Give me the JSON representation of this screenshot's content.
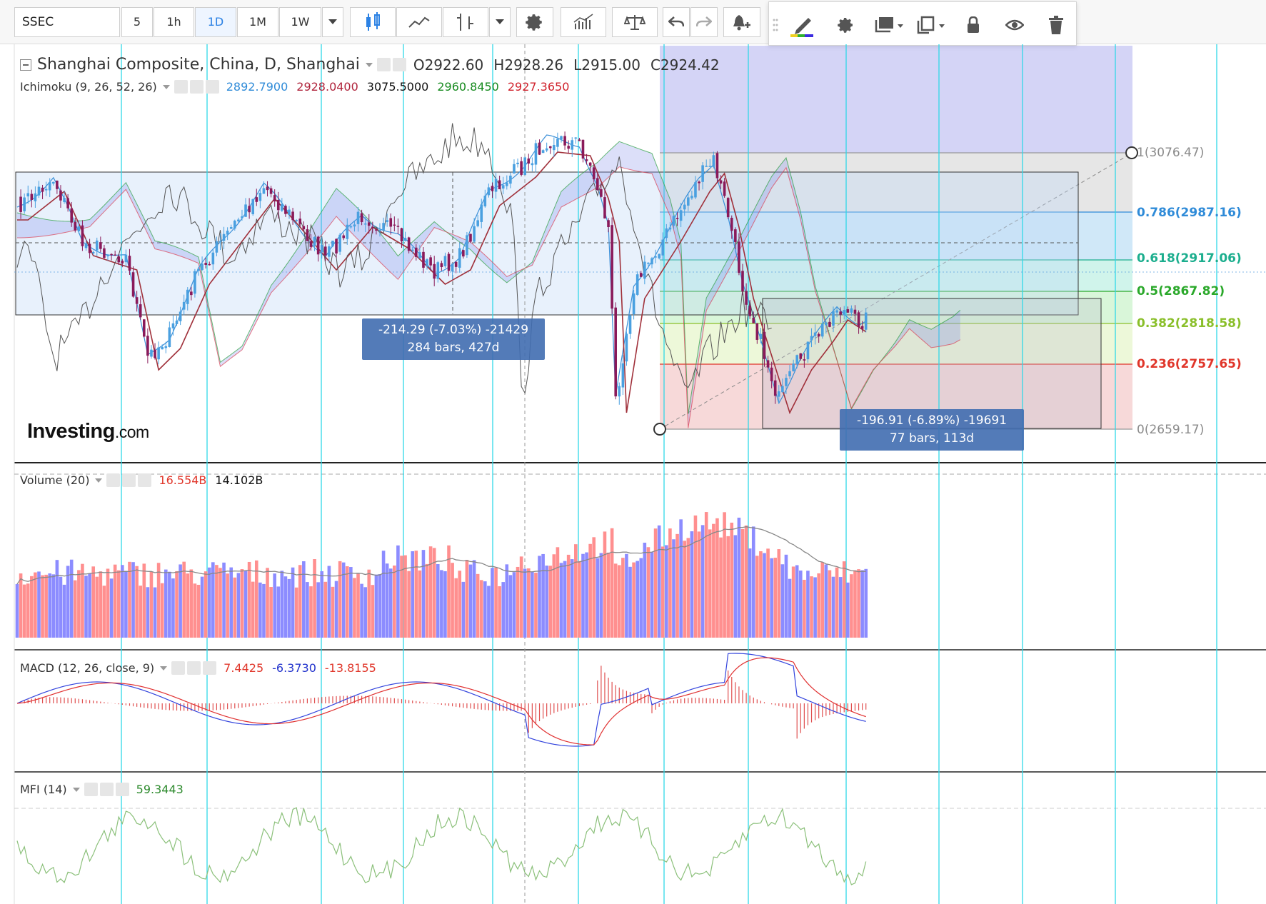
{
  "toolbar": {
    "symbol": "SSEC",
    "intervals": [
      "5",
      "1h",
      "1D",
      "1M",
      "1W"
    ],
    "active_interval": "1D"
  },
  "main_pane": {
    "title": "Shanghai Composite, China, D, Shanghai",
    "ohlc": {
      "o_label": "O",
      "o": "2922.60",
      "h_label": "H",
      "h": "2928.26",
      "l_label": "L",
      "l": "2915.00",
      "c_label": "C",
      "c": "2924.42"
    },
    "ichimoku": {
      "label": "Ichimoku (9, 26, 52, 26)",
      "values": [
        "2892.7900",
        "2928.0400",
        "3075.5000",
        "2960.8450",
        "2927.3650"
      ],
      "colors": [
        "#2f8bd8",
        "#b0243c",
        "#111111",
        "#168a1e",
        "#d0202a"
      ]
    },
    "fib_levels": [
      {
        "label": "1(3076.47)",
        "color": "#8a8a8a"
      },
      {
        "label": "0.786(2987.16)",
        "color": "#2f8bd8"
      },
      {
        "label": "0.618(2917.06)",
        "color": "#1cae8e"
      },
      {
        "label": "0.5(2867.82)",
        "color": "#2aa82a"
      },
      {
        "label": "0.382(2818.58)",
        "color": "#8abf2a"
      },
      {
        "label": "0.236(2757.65)",
        "color": "#e0362a"
      },
      {
        "label": "0(2659.17)",
        "color": "#8a8a8a"
      }
    ],
    "measure_1": {
      "line1": "-214.29 (-7.03%) -21429",
      "line2": "284 bars, 427d"
    },
    "measure_2": {
      "line1": "-196.91 (-6.89%) -19691",
      "line2": "77 bars, 113d"
    },
    "logo_main": "Investing",
    "logo_domain": ".com"
  },
  "volume_pane": {
    "label": "Volume (20)",
    "values": [
      "16.554B",
      "14.102B"
    ],
    "colors": [
      "#e0362a",
      "#111111"
    ]
  },
  "macd_pane": {
    "label": "MACD (12, 26, close, 9)",
    "values": [
      "7.4425",
      "-6.3730",
      "-13.8155"
    ],
    "colors": [
      "#e0362a",
      "#2233cc",
      "#e0362a"
    ]
  },
  "mfi_pane": {
    "label": "MFI (14)",
    "values": [
      "59.3443"
    ],
    "colors": [
      "#2e8b2e"
    ]
  },
  "colors": {
    "bull": "#4aa0e0",
    "bear": "#8a1a5a",
    "volume_up": "#ff8f8f",
    "volume_down": "#8c8cff",
    "grid_cyan": "#30d8e8"
  }
}
